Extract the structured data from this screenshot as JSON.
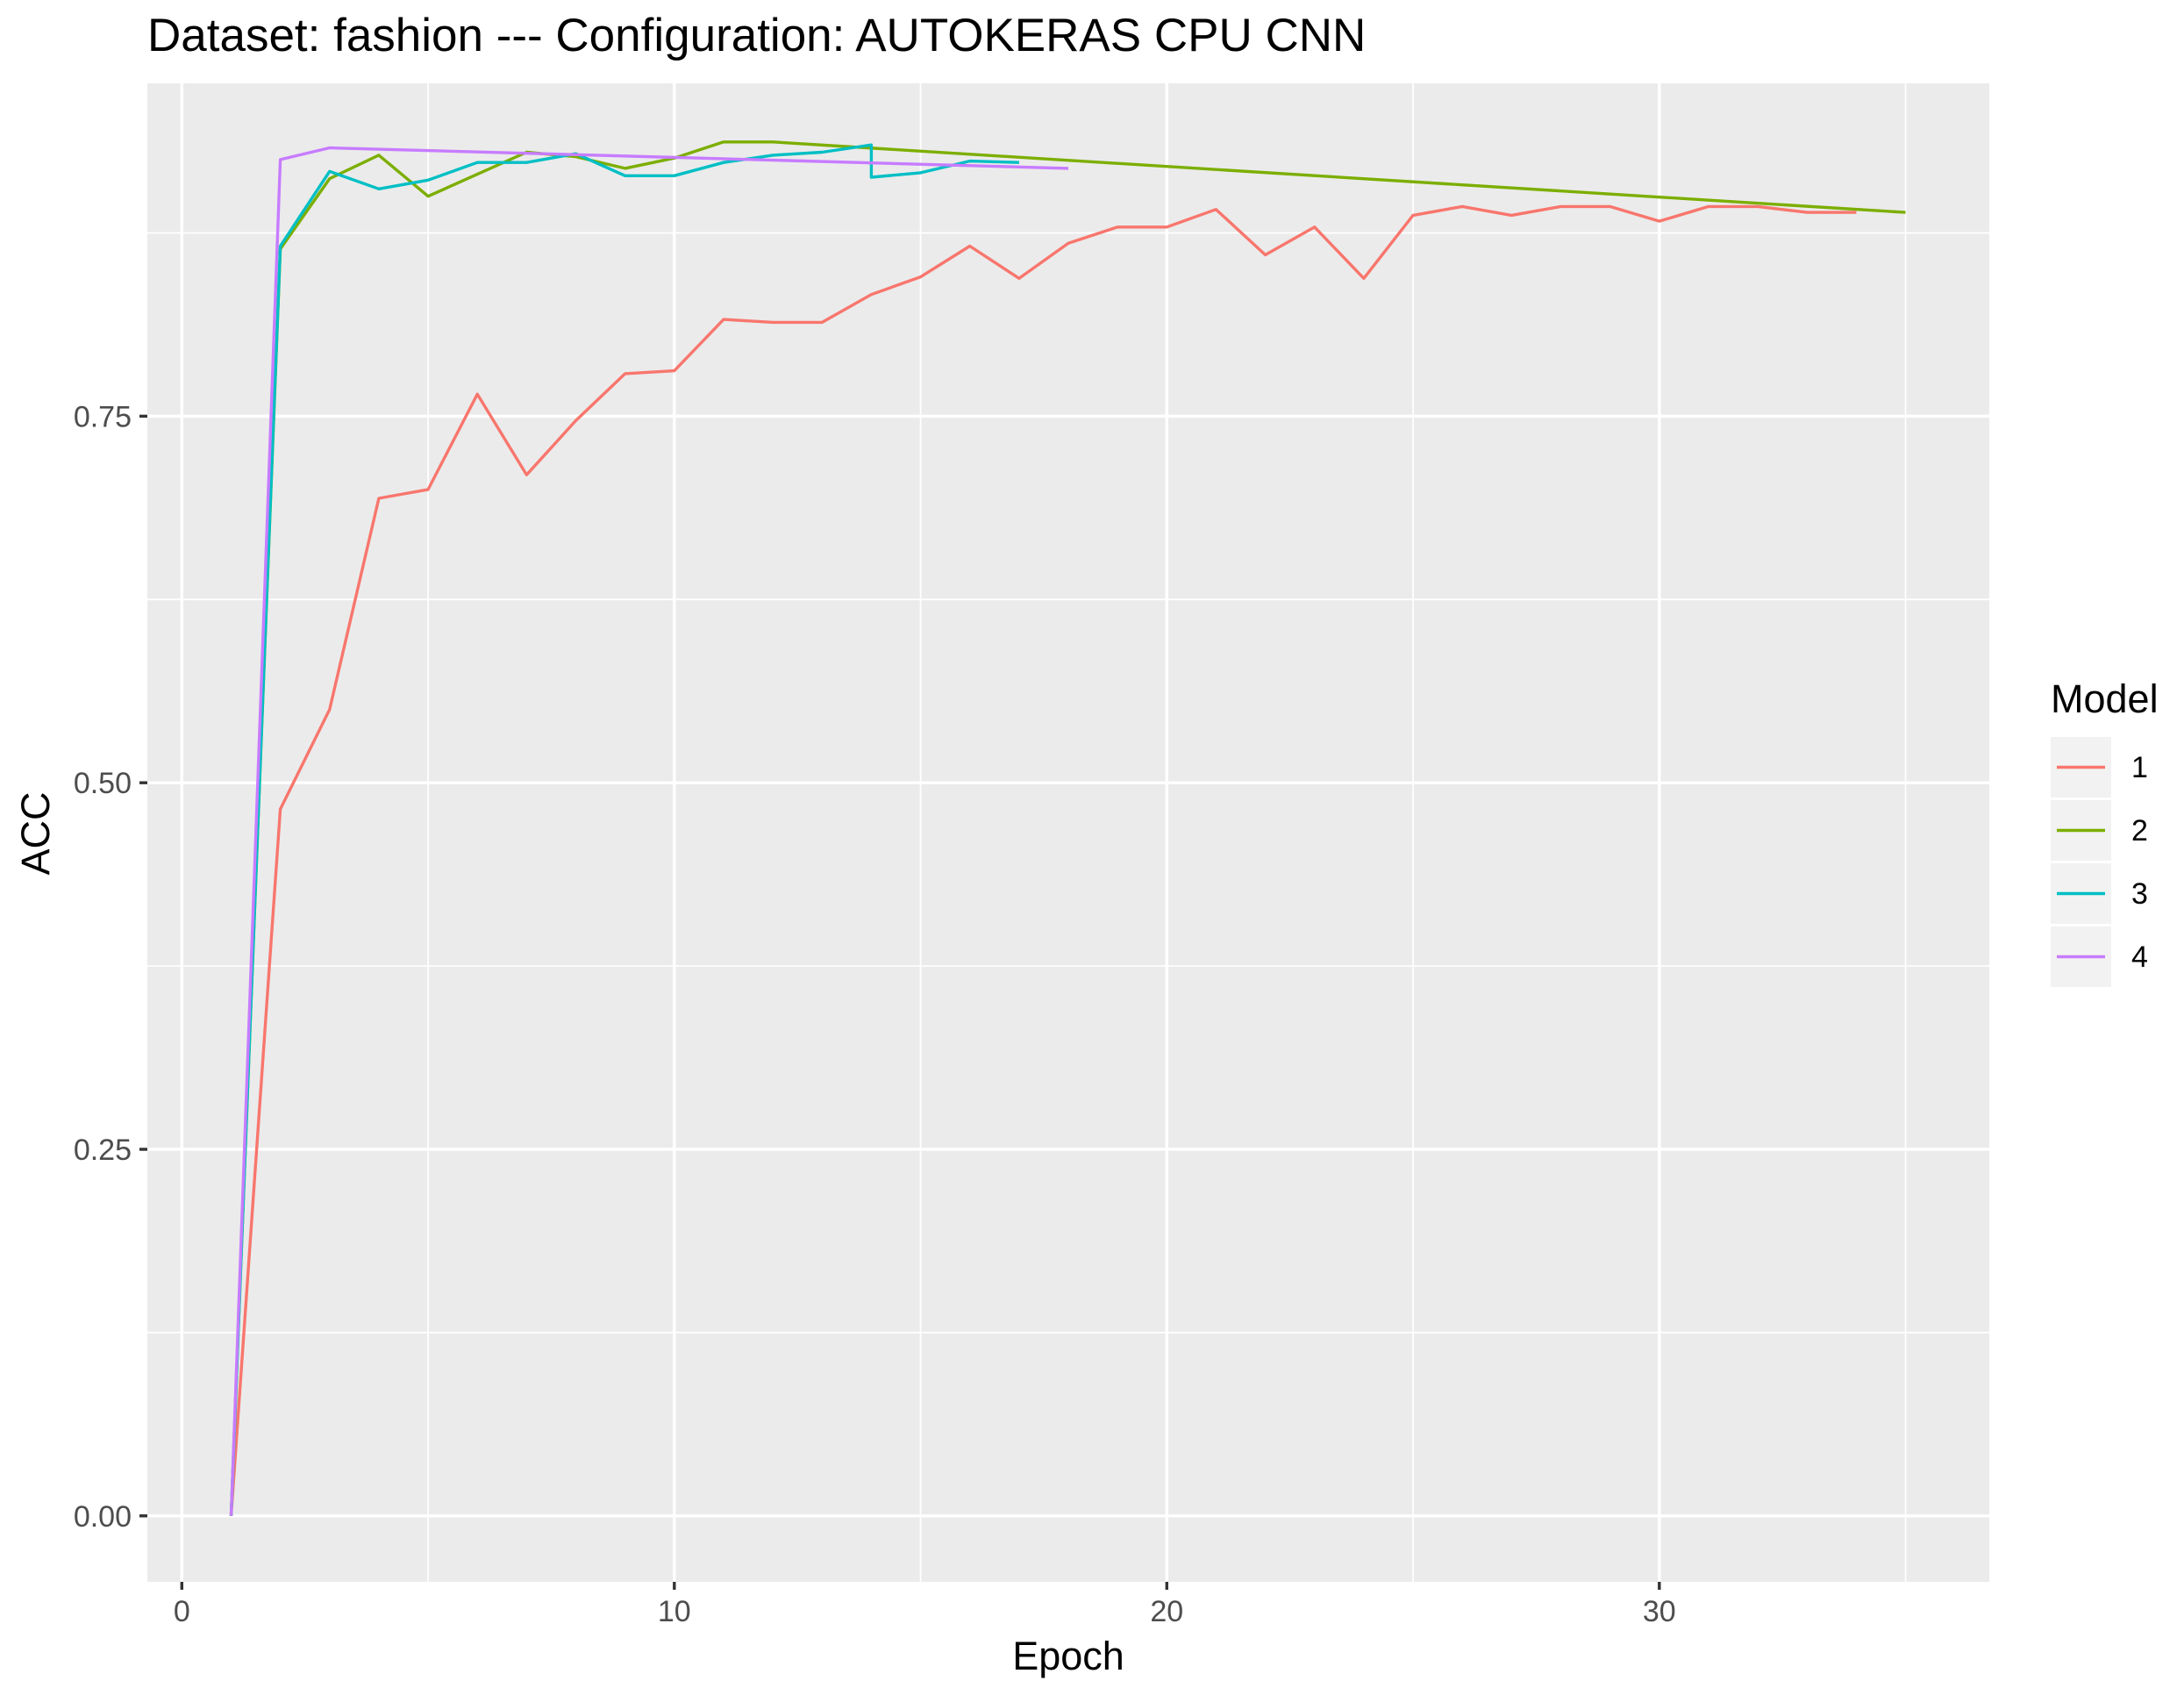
{
  "chart_data": {
    "type": "line",
    "title": "Dataset:  fashion  --- Configuration:  AUTOKERAS CPU CNN",
    "xlabel": "Epoch",
    "ylabel": "ACC",
    "xlim": [
      -0.7,
      36.7
    ],
    "ylim": [
      -0.045,
      0.977
    ],
    "x_ticks": [
      0,
      10,
      20,
      30
    ],
    "x_minor": [
      5,
      15,
      25,
      35
    ],
    "y_ticks": [
      0.0,
      0.25,
      0.5,
      0.75
    ],
    "y_tick_labels": [
      "0.00",
      "0.25",
      "0.50",
      "0.75"
    ],
    "y_minor": [
      0.125,
      0.375,
      0.625,
      0.875
    ],
    "grid": true,
    "legend_title": "Model",
    "legend_position": "right",
    "series": [
      {
        "name": "1",
        "color": "#F8766D",
        "x": [
          1,
          2,
          3,
          4,
          5,
          6,
          7,
          8,
          9,
          10,
          11,
          12,
          13,
          14,
          15,
          16,
          17,
          18,
          19,
          20,
          21,
          22,
          23,
          24,
          25,
          26,
          27,
          28,
          29,
          30,
          31,
          32,
          33,
          34
        ],
        "values": [
          0.0,
          0.482,
          0.55,
          0.694,
          0.7,
          0.765,
          0.71,
          0.747,
          0.779,
          0.781,
          0.816,
          0.814,
          0.814,
          0.833,
          0.845,
          0.866,
          0.844,
          0.868,
          0.879,
          0.879,
          0.891,
          0.86,
          0.879,
          0.844,
          0.887,
          0.893,
          0.887,
          0.893,
          0.893,
          0.883,
          0.893,
          0.893,
          0.889,
          0.889
        ]
      },
      {
        "name": "2",
        "color": "#7CAE00",
        "x": [
          1,
          2,
          3,
          4,
          5,
          6,
          7,
          8,
          9,
          10,
          11,
          12,
          35
        ],
        "values": [
          0.0,
          0.864,
          0.912,
          0.928,
          0.9,
          0.915,
          0.93,
          0.927,
          0.919,
          0.926,
          0.937,
          0.937,
          0.889
        ]
      },
      {
        "name": "3",
        "color": "#00BFC4",
        "x": [
          1,
          2,
          3,
          4,
          5,
          6,
          7,
          8,
          9,
          10,
          11,
          12,
          13,
          14,
          14,
          15,
          16,
          17
        ],
        "values": [
          0.0,
          0.866,
          0.917,
          0.905,
          0.911,
          0.923,
          0.923,
          0.929,
          0.914,
          0.914,
          0.923,
          0.928,
          0.93,
          0.935,
          0.913,
          0.916,
          0.924,
          0.923
        ]
      },
      {
        "name": "4",
        "color": "#C77CFF",
        "x": [
          1,
          2,
          3,
          18
        ],
        "values": [
          0.0,
          0.925,
          0.933,
          0.919
        ]
      }
    ]
  }
}
